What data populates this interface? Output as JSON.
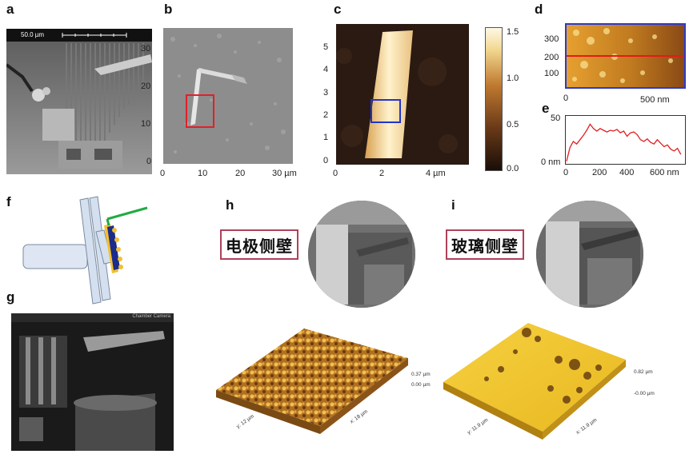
{
  "panels": {
    "a": {
      "label": "a",
      "scalebar": "50.0 µm"
    },
    "b": {
      "label": "b",
      "xticks": [
        "0",
        "10",
        "20",
        "30 µm"
      ],
      "yticks": [
        "30",
        "20",
        "10",
        "0"
      ]
    },
    "c": {
      "label": "c",
      "xticks": [
        "0",
        "2",
        "4 µm"
      ],
      "yticks": [
        "5",
        "4",
        "3",
        "2",
        "1",
        "0"
      ],
      "colorbar_ticks": [
        "1.5",
        "1.0",
        "0.5",
        "0.0"
      ]
    },
    "d": {
      "label": "d",
      "xticks": [
        "0",
        "500 nm"
      ],
      "yticks": [
        "300",
        "200",
        "100"
      ]
    },
    "e": {
      "label": "e",
      "xticks": [
        "0",
        "200",
        "400",
        "600 nm"
      ],
      "yticks": [
        "50",
        "0 nm"
      ]
    },
    "f": {
      "label": "f"
    },
    "g": {
      "label": "g",
      "header": "Chamber Camera"
    },
    "h": {
      "label": "h",
      "title_cn": "电极侧壁",
      "z_max": "0.37 µm",
      "z_min": "0.00 µm",
      "y_axis": "y: 12 µm",
      "x_axis": "x: 18 µm"
    },
    "i": {
      "label": "i",
      "title_cn": "玻璃侧壁",
      "z_max": "0.82 µm",
      "z_min": "-0.00 µm",
      "y_axis": "y: 11.9 µm",
      "x_axis": "x: 11.9 µm"
    }
  },
  "colors": {
    "red_box": "#e0202a",
    "blue_box": "#2233cc",
    "green_probe": "#22aa44",
    "title_border": "#b0405a"
  },
  "chart_data": [
    {
      "type": "line",
      "panel": "e",
      "x": [
        0,
        20,
        40,
        60,
        80,
        100,
        120,
        140,
        160,
        180,
        200,
        220,
        240,
        260,
        280,
        300,
        320,
        340,
        360,
        380,
        400,
        420,
        440,
        460,
        480,
        500,
        520,
        540,
        560,
        580,
        600,
        620,
        640,
        660,
        680
      ],
      "y": [
        2,
        18,
        25,
        22,
        27,
        32,
        38,
        45,
        40,
        37,
        40,
        38,
        36,
        38,
        37,
        39,
        35,
        37,
        31,
        35,
        36,
        33,
        27,
        25,
        28,
        24,
        22,
        27,
        23,
        19,
        21,
        16,
        14,
        17,
        10
      ],
      "xlim": [
        0,
        700
      ],
      "ylim": [
        0,
        50
      ],
      "color": "#e02020"
    }
  ]
}
